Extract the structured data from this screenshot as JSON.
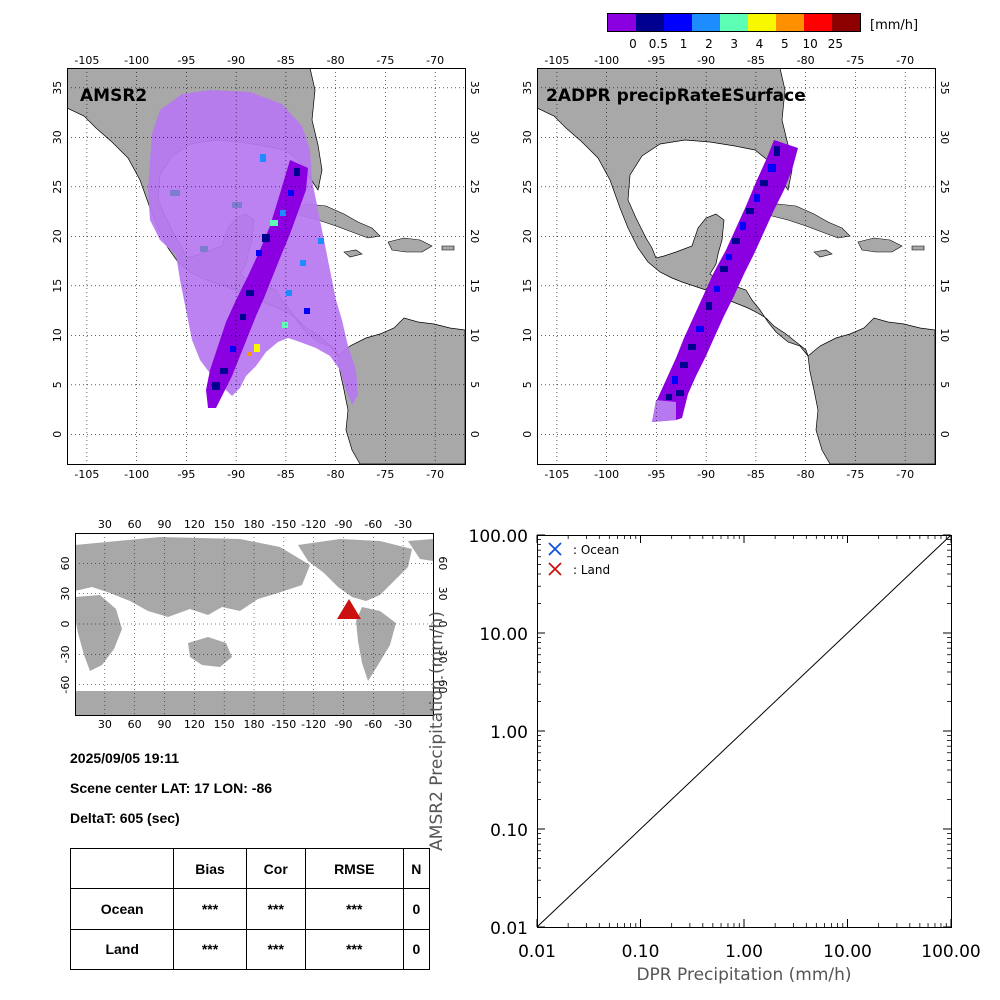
{
  "colorbar": {
    "colors": [
      "#8a00e0",
      "#000090",
      "#0000ff",
      "#1c8cff",
      "#5cffb4",
      "#f8f800",
      "#ff9000",
      "#ff0000",
      "#8c0000"
    ],
    "tick_labels": [
      "0",
      "0.5",
      "1",
      "2",
      "3",
      "4",
      "5",
      "10",
      "25"
    ],
    "unit": "[mm/h]"
  },
  "maps": {
    "left_title": "AMSR2",
    "right_title": "2ADPR precipRateESurface",
    "lon_ticks": [
      "-105",
      "-100",
      "-95",
      "-90",
      "-85",
      "-80",
      "-75",
      "-70"
    ],
    "lat_ticks": [
      "35",
      "30",
      "25",
      "20",
      "15",
      "10",
      "5",
      "0"
    ],
    "land_color": "#a8a8a8",
    "amsr2_swath_color": "#b878f0"
  },
  "world_map": {
    "top_ticks": [
      "30",
      "60",
      "90",
      "120",
      "150",
      "180",
      "-150",
      "-120",
      "-90",
      "-60",
      "-30"
    ],
    "bottom_ticks": [
      "30",
      "60",
      "90",
      "120",
      "150",
      "180",
      "-150",
      "-120",
      "-90",
      "-60",
      "-30"
    ],
    "lat_ticks": [
      "60",
      "30",
      "0",
      "-30",
      "-60"
    ],
    "marker_color": "#cc1010"
  },
  "info": {
    "datetime": "2025/09/05 19:11",
    "scene_center": "Scene center LAT: 17   LON: -86",
    "delta_t": "DeltaT:  605 (sec)"
  },
  "stats_table": {
    "headers": [
      "",
      "Bias",
      "Cor",
      "RMSE",
      "N"
    ],
    "rows": [
      {
        "label": "Ocean",
        "bias": "***",
        "cor": "***",
        "rmse": "***",
        "n": "0"
      },
      {
        "label": "Land",
        "bias": "***",
        "cor": "***",
        "rmse": "***",
        "n": "0"
      }
    ]
  },
  "chart_data": {
    "type": "scatter",
    "xlabel": "DPR Precipitation (mm/h)",
    "ylabel": "AMSR2 Precipitation (mm/h)",
    "xscale": "log",
    "yscale": "log",
    "xlim": [
      0.01,
      100
    ],
    "ylim": [
      0.01,
      100
    ],
    "x_tick_labels": [
      "0.01",
      "0.10",
      "1.00",
      "10.00",
      "100.00"
    ],
    "y_tick_labels": [
      "0.01",
      "0.10",
      "1.00",
      "10.00",
      "100.00"
    ],
    "reference_line": "1:1",
    "series": [
      {
        "name": ": Ocean",
        "color": "#1050e0",
        "marker": "x",
        "points": []
      },
      {
        "name": ": Land",
        "color": "#cc1010",
        "marker": "x",
        "points": []
      }
    ],
    "legend_position": "top-left"
  }
}
